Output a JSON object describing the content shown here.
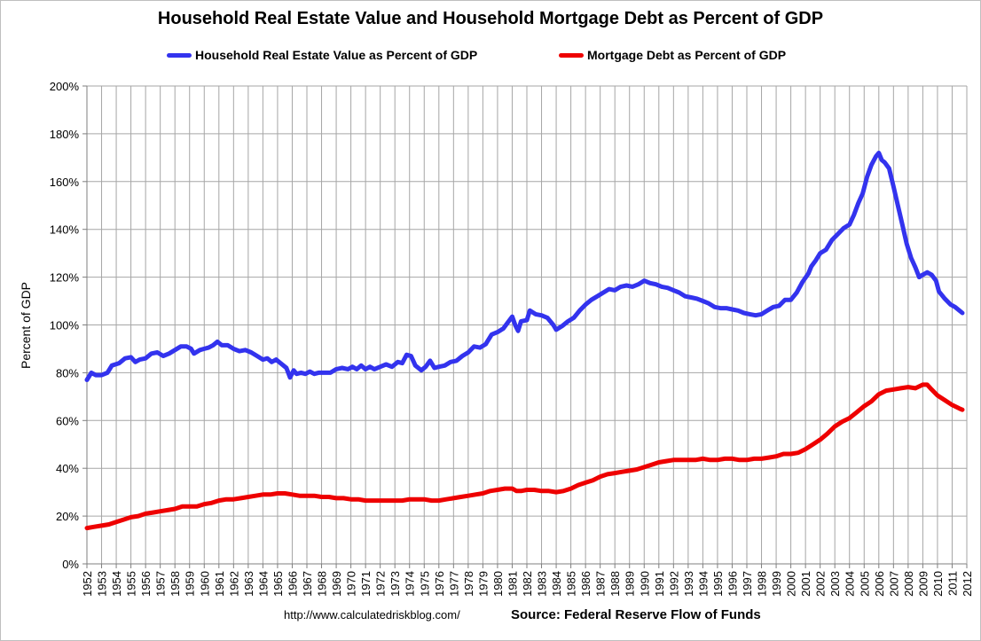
{
  "chart_data": {
    "type": "line",
    "title": "Household Real Estate Value and Household Mortgage Debt as Percent of GDP",
    "xlabel": "",
    "ylabel": "Percent of GDP",
    "xlim": [
      1952,
      2012
    ],
    "ylim": [
      0,
      200
    ],
    "y_ticks": [
      0,
      20,
      40,
      60,
      80,
      100,
      120,
      140,
      160,
      180,
      200
    ],
    "y_tick_labels": [
      "0%",
      "20%",
      "40%",
      "60%",
      "80%",
      "100%",
      "120%",
      "140%",
      "160%",
      "180%",
      "200%"
    ],
    "x_tick_labels": [
      "1952",
      "1953",
      "1954",
      "1955",
      "1956",
      "1957",
      "1958",
      "1959",
      "1960",
      "1961",
      "1962",
      "1963",
      "1964",
      "1965",
      "1966",
      "1967",
      "1968",
      "1969",
      "1970",
      "1971",
      "1972",
      "1973",
      "1974",
      "1975",
      "1976",
      "1977",
      "1978",
      "1979",
      "1980",
      "1981",
      "1982",
      "1983",
      "1984",
      "1985",
      "1986",
      "1987",
      "1988",
      "1989",
      "1990",
      "1991",
      "1992",
      "1993",
      "1994",
      "1995",
      "1996",
      "1997",
      "1998",
      "1999",
      "2000",
      "2001",
      "2002",
      "2003",
      "2004",
      "2005",
      "2006",
      "2007",
      "2008",
      "2009",
      "2010",
      "2011",
      "2012"
    ],
    "grid": true,
    "legend_position": "top-center",
    "series": [
      {
        "name": "Household Real Estate Value as Percent of GDP",
        "color": "#3333ee",
        "points": [
          [
            1952.0,
            77
          ],
          [
            1952.3,
            80
          ],
          [
            1952.6,
            79
          ],
          [
            1953.0,
            79
          ],
          [
            1953.4,
            80
          ],
          [
            1953.7,
            83
          ],
          [
            1954.2,
            84
          ],
          [
            1954.6,
            86
          ],
          [
            1955.0,
            86.5
          ],
          [
            1955.3,
            84.5
          ],
          [
            1955.6,
            85.5
          ],
          [
            1956.0,
            86
          ],
          [
            1956.4,
            88
          ],
          [
            1956.8,
            88.5
          ],
          [
            1957.2,
            87
          ],
          [
            1957.6,
            88
          ],
          [
            1958.0,
            89.5
          ],
          [
            1958.4,
            91
          ],
          [
            1958.8,
            91
          ],
          [
            1959.1,
            90
          ],
          [
            1959.3,
            88
          ],
          [
            1959.7,
            89.5
          ],
          [
            1960.0,
            90
          ],
          [
            1960.3,
            90.5
          ],
          [
            1960.6,
            91.5
          ],
          [
            1960.9,
            93
          ],
          [
            1961.2,
            91.5
          ],
          [
            1961.6,
            91.5
          ],
          [
            1962.0,
            90
          ],
          [
            1962.4,
            89
          ],
          [
            1962.8,
            89.5
          ],
          [
            1963.2,
            88.5
          ],
          [
            1963.6,
            87
          ],
          [
            1964.0,
            85.5
          ],
          [
            1964.3,
            86
          ],
          [
            1964.6,
            84.5
          ],
          [
            1964.9,
            85.5
          ],
          [
            1965.2,
            84
          ],
          [
            1965.6,
            82
          ],
          [
            1965.85,
            78
          ],
          [
            1966.1,
            81
          ],
          [
            1966.3,
            79.5
          ],
          [
            1966.6,
            80
          ],
          [
            1966.9,
            79.5
          ],
          [
            1967.2,
            80.5
          ],
          [
            1967.5,
            79.5
          ],
          [
            1967.8,
            80
          ],
          [
            1968.2,
            80
          ],
          [
            1968.6,
            80
          ],
          [
            1969.0,
            81.5
          ],
          [
            1969.4,
            82
          ],
          [
            1969.8,
            81.5
          ],
          [
            1970.1,
            82.5
          ],
          [
            1970.4,
            81.5
          ],
          [
            1970.7,
            83
          ],
          [
            1971.0,
            81.5
          ],
          [
            1971.3,
            82.5
          ],
          [
            1971.6,
            81.5
          ],
          [
            1972.0,
            82.5
          ],
          [
            1972.4,
            83.5
          ],
          [
            1972.8,
            82.5
          ],
          [
            1973.2,
            84.5
          ],
          [
            1973.5,
            84
          ],
          [
            1973.8,
            87.5
          ],
          [
            1974.1,
            87
          ],
          [
            1974.4,
            83
          ],
          [
            1974.8,
            81
          ],
          [
            1975.1,
            82.5
          ],
          [
            1975.4,
            85
          ],
          [
            1975.7,
            82
          ],
          [
            1976.0,
            82.5
          ],
          [
            1976.4,
            83
          ],
          [
            1976.8,
            84.5
          ],
          [
            1977.2,
            85
          ],
          [
            1977.6,
            87
          ],
          [
            1978.0,
            88.5
          ],
          [
            1978.4,
            91
          ],
          [
            1978.8,
            90.5
          ],
          [
            1979.2,
            92
          ],
          [
            1979.6,
            96
          ],
          [
            1980.0,
            97
          ],
          [
            1980.4,
            98.5
          ],
          [
            1980.7,
            101
          ],
          [
            1981.0,
            103.5
          ],
          [
            1981.2,
            100
          ],
          [
            1981.4,
            97.5
          ],
          [
            1981.6,
            101.5
          ],
          [
            1982.0,
            102
          ],
          [
            1982.2,
            106
          ],
          [
            1982.6,
            104.5
          ],
          [
            1983.0,
            104
          ],
          [
            1983.4,
            103
          ],
          [
            1983.8,
            100
          ],
          [
            1984.0,
            98
          ],
          [
            1984.4,
            99.5
          ],
          [
            1984.8,
            101.5
          ],
          [
            1985.2,
            103
          ],
          [
            1985.6,
            106
          ],
          [
            1986.0,
            108.5
          ],
          [
            1986.4,
            110.5
          ],
          [
            1986.8,
            112
          ],
          [
            1987.2,
            113.5
          ],
          [
            1987.6,
            115
          ],
          [
            1988.0,
            114.5
          ],
          [
            1988.4,
            116
          ],
          [
            1988.8,
            116.5
          ],
          [
            1989.2,
            116
          ],
          [
            1989.6,
            117
          ],
          [
            1990.0,
            118.5
          ],
          [
            1990.4,
            117.5
          ],
          [
            1990.8,
            117
          ],
          [
            1991.2,
            116
          ],
          [
            1991.6,
            115.5
          ],
          [
            1992.0,
            114.5
          ],
          [
            1992.4,
            113.5
          ],
          [
            1992.8,
            112
          ],
          [
            1993.2,
            111.5
          ],
          [
            1993.6,
            111
          ],
          [
            1994.0,
            110
          ],
          [
            1994.4,
            109
          ],
          [
            1994.8,
            107.5
          ],
          [
            1995.2,
            107
          ],
          [
            1995.6,
            107
          ],
          [
            1996.0,
            106.5
          ],
          [
            1996.4,
            106
          ],
          [
            1996.8,
            105
          ],
          [
            1997.2,
            104.5
          ],
          [
            1997.6,
            104
          ],
          [
            1998.0,
            104.5
          ],
          [
            1998.4,
            106
          ],
          [
            1998.8,
            107.5
          ],
          [
            1999.2,
            108
          ],
          [
            1999.6,
            110.5
          ],
          [
            2000.0,
            110.5
          ],
          [
            2000.4,
            113.5
          ],
          [
            2000.8,
            118
          ],
          [
            2001.2,
            121.5
          ],
          [
            2001.4,
            124.5
          ],
          [
            2001.7,
            127
          ],
          [
            2002.0,
            130
          ],
          [
            2002.4,
            131.5
          ],
          [
            2002.8,
            135.5
          ],
          [
            2003.2,
            138
          ],
          [
            2003.6,
            140.5
          ],
          [
            2004.0,
            142
          ],
          [
            2004.3,
            146
          ],
          [
            2004.6,
            151
          ],
          [
            2004.9,
            155
          ],
          [
            2005.2,
            162
          ],
          [
            2005.5,
            167
          ],
          [
            2005.8,
            170.5
          ],
          [
            2006.0,
            172
          ],
          [
            2006.2,
            169
          ],
          [
            2006.4,
            168
          ],
          [
            2006.7,
            165.5
          ],
          [
            2007.0,
            158
          ],
          [
            2007.3,
            150
          ],
          [
            2007.6,
            142
          ],
          [
            2007.9,
            134
          ],
          [
            2008.2,
            128
          ],
          [
            2008.5,
            124
          ],
          [
            2008.75,
            120
          ],
          [
            2009.0,
            121
          ],
          [
            2009.3,
            122
          ],
          [
            2009.6,
            121
          ],
          [
            2009.9,
            118.5
          ],
          [
            2010.1,
            114
          ],
          [
            2010.5,
            111
          ],
          [
            2010.9,
            108.5
          ],
          [
            2011.2,
            107.5
          ],
          [
            2011.5,
            106
          ],
          [
            2011.7,
            105
          ]
        ]
      },
      {
        "name": "Mortgage Debt as Percent of GDP",
        "color": "#ee0000",
        "points": [
          [
            1952.0,
            15
          ],
          [
            1952.5,
            15.5
          ],
          [
            1953.0,
            16
          ],
          [
            1953.5,
            16.5
          ],
          [
            1954.0,
            17.5
          ],
          [
            1954.5,
            18.5
          ],
          [
            1955.0,
            19.5
          ],
          [
            1955.5,
            20
          ],
          [
            1956.0,
            21
          ],
          [
            1956.5,
            21.5
          ],
          [
            1957.0,
            22
          ],
          [
            1957.5,
            22.5
          ],
          [
            1958.0,
            23
          ],
          [
            1958.5,
            24
          ],
          [
            1959.0,
            24
          ],
          [
            1959.5,
            24
          ],
          [
            1960.0,
            25
          ],
          [
            1960.5,
            25.5
          ],
          [
            1961.0,
            26.5
          ],
          [
            1961.5,
            27
          ],
          [
            1962.0,
            27
          ],
          [
            1962.5,
            27.5
          ],
          [
            1963.0,
            28
          ],
          [
            1963.5,
            28.5
          ],
          [
            1964.0,
            29
          ],
          [
            1964.5,
            29
          ],
          [
            1965.0,
            29.5
          ],
          [
            1965.5,
            29.5
          ],
          [
            1966.0,
            29
          ],
          [
            1966.5,
            28.5
          ],
          [
            1967.0,
            28.5
          ],
          [
            1967.5,
            28.5
          ],
          [
            1968.0,
            28
          ],
          [
            1968.5,
            28
          ],
          [
            1969.0,
            27.5
          ],
          [
            1969.5,
            27.5
          ],
          [
            1970.0,
            27
          ],
          [
            1970.5,
            27
          ],
          [
            1971.0,
            26.5
          ],
          [
            1971.5,
            26.5
          ],
          [
            1972.0,
            26.5
          ],
          [
            1972.5,
            26.5
          ],
          [
            1973.0,
            26.5
          ],
          [
            1973.5,
            26.5
          ],
          [
            1974.0,
            27
          ],
          [
            1974.5,
            27
          ],
          [
            1975.0,
            27
          ],
          [
            1975.5,
            26.5
          ],
          [
            1976.0,
            26.5
          ],
          [
            1976.5,
            27
          ],
          [
            1977.0,
            27.5
          ],
          [
            1977.5,
            28
          ],
          [
            1978.0,
            28.5
          ],
          [
            1978.5,
            29
          ],
          [
            1979.0,
            29.5
          ],
          [
            1979.5,
            30.5
          ],
          [
            1980.0,
            31
          ],
          [
            1980.5,
            31.5
          ],
          [
            1981.0,
            31.5
          ],
          [
            1981.3,
            30.5
          ],
          [
            1981.6,
            30.5
          ],
          [
            1982.0,
            31
          ],
          [
            1982.5,
            31
          ],
          [
            1983.0,
            30.5
          ],
          [
            1983.5,
            30.5
          ],
          [
            1984.0,
            30
          ],
          [
            1984.5,
            30.5
          ],
          [
            1985.0,
            31.5
          ],
          [
            1985.5,
            33
          ],
          [
            1986.0,
            34
          ],
          [
            1986.5,
            35
          ],
          [
            1987.0,
            36.5
          ],
          [
            1987.5,
            37.5
          ],
          [
            1988.0,
            38
          ],
          [
            1988.5,
            38.5
          ],
          [
            1989.0,
            39
          ],
          [
            1989.5,
            39.5
          ],
          [
            1990.0,
            40.5
          ],
          [
            1990.5,
            41.5
          ],
          [
            1991.0,
            42.5
          ],
          [
            1991.5,
            43
          ],
          [
            1992.0,
            43.5
          ],
          [
            1992.5,
            43.5
          ],
          [
            1993.0,
            43.5
          ],
          [
            1993.5,
            43.5
          ],
          [
            1994.0,
            44
          ],
          [
            1994.5,
            43.5
          ],
          [
            1995.0,
            43.5
          ],
          [
            1995.5,
            44
          ],
          [
            1996.0,
            44
          ],
          [
            1996.5,
            43.5
          ],
          [
            1997.0,
            43.5
          ],
          [
            1997.5,
            44
          ],
          [
            1998.0,
            44
          ],
          [
            1998.5,
            44.5
          ],
          [
            1999.0,
            45
          ],
          [
            1999.5,
            46
          ],
          [
            2000.0,
            46
          ],
          [
            2000.5,
            46.5
          ],
          [
            2001.0,
            48
          ],
          [
            2001.5,
            50
          ],
          [
            2002.0,
            52
          ],
          [
            2002.5,
            54.5
          ],
          [
            2003.0,
            57.5
          ],
          [
            2003.5,
            59.5
          ],
          [
            2004.0,
            61
          ],
          [
            2004.5,
            63.5
          ],
          [
            2005.0,
            66
          ],
          [
            2005.5,
            68
          ],
          [
            2006.0,
            71
          ],
          [
            2006.5,
            72.5
          ],
          [
            2007.0,
            73
          ],
          [
            2007.5,
            73.5
          ],
          [
            2008.0,
            74
          ],
          [
            2008.5,
            73.5
          ],
          [
            2009.0,
            75
          ],
          [
            2009.3,
            75
          ],
          [
            2009.6,
            73
          ],
          [
            2010.0,
            70.5
          ],
          [
            2010.5,
            68.5
          ],
          [
            2011.0,
            66.5
          ],
          [
            2011.5,
            65
          ],
          [
            2011.7,
            64.5
          ]
        ]
      }
    ]
  },
  "footer": {
    "url": "http://www.calculatedriskblog.com/",
    "source": "Source: Federal Reserve Flow of Funds"
  }
}
